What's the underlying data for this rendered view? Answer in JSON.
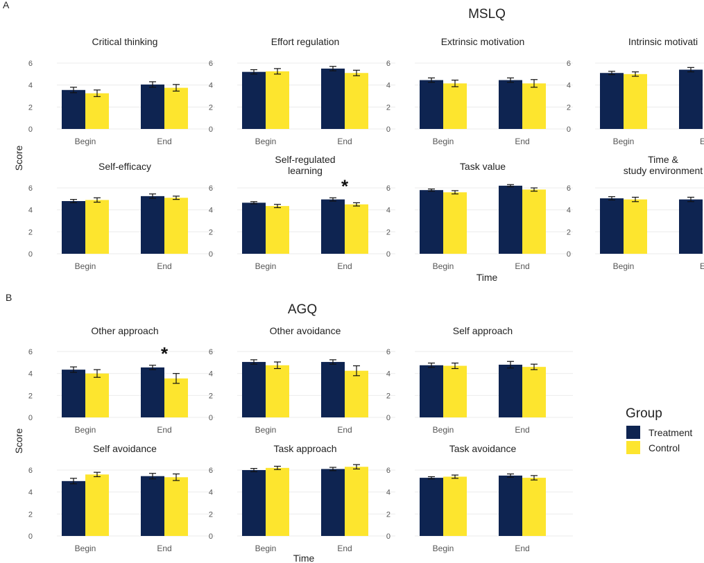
{
  "colors": {
    "treatment": "#0e2451",
    "control": "#fde52e",
    "axis_text": "#555555",
    "text": "#222222",
    "grid": "#ebebeb"
  },
  "section_a": {
    "letter": "A",
    "title": "MSLQ",
    "ylabel": "Score",
    "xlabel": "Time"
  },
  "section_b": {
    "letter": "B",
    "title": "AGQ",
    "ylabel": "Score",
    "xlabel": "Time"
  },
  "legend": {
    "title": "Group",
    "items": [
      "Treatment",
      "Control"
    ]
  },
  "significance_marker": "*",
  "chart_data": [
    {
      "type": "bar",
      "section": "MSLQ",
      "title": "Critical thinking",
      "categories": [
        "Begin",
        "End"
      ],
      "ylim": [
        0,
        6
      ],
      "yticks": [
        0,
        2,
        4,
        6
      ],
      "xlabel": "",
      "ylabel": "",
      "series": [
        {
          "name": "Treatment",
          "values": [
            3.55,
            4.05
          ],
          "errors": [
            0.25,
            0.25
          ]
        },
        {
          "name": "Control",
          "values": [
            3.25,
            3.75
          ],
          "errors": [
            0.3,
            0.3
          ]
        }
      ]
    },
    {
      "type": "bar",
      "section": "MSLQ",
      "title": "Effort regulation",
      "categories": [
        "Begin",
        "End"
      ],
      "ylim": [
        0,
        6
      ],
      "yticks": [
        0,
        2,
        4,
        6
      ],
      "xlabel": "",
      "ylabel": "",
      "series": [
        {
          "name": "Treatment",
          "values": [
            5.2,
            5.5
          ],
          "errors": [
            0.2,
            0.2
          ]
        },
        {
          "name": "Control",
          "values": [
            5.25,
            5.1
          ],
          "errors": [
            0.25,
            0.25
          ]
        }
      ]
    },
    {
      "type": "bar",
      "section": "MSLQ",
      "title": "Extrinsic motivation",
      "categories": [
        "Begin",
        "End"
      ],
      "ylim": [
        0,
        6
      ],
      "yticks": [
        0,
        2,
        4,
        6
      ],
      "xlabel": "",
      "ylabel": "",
      "series": [
        {
          "name": "Treatment",
          "values": [
            4.45,
            4.45
          ],
          "errors": [
            0.2,
            0.2
          ]
        },
        {
          "name": "Control",
          "values": [
            4.15,
            4.15
          ],
          "errors": [
            0.3,
            0.35
          ]
        }
      ]
    },
    {
      "type": "bar",
      "section": "MSLQ",
      "title": "Intrinsic motivati",
      "categories": [
        "Begin",
        "E"
      ],
      "ylim": [
        0,
        6
      ],
      "yticks": [
        0,
        2,
        4,
        6
      ],
      "xlabel": "",
      "ylabel": "",
      "series": [
        {
          "name": "Treatment",
          "values": [
            5.1,
            5.4
          ],
          "errors": [
            0.15,
            0.2
          ]
        },
        {
          "name": "Control",
          "values": [
            5.0,
            null
          ],
          "errors": [
            0.2,
            null
          ]
        }
      ]
    },
    {
      "type": "bar",
      "section": "MSLQ",
      "title": "Self-efficacy",
      "categories": [
        "Begin",
        "End"
      ],
      "ylim": [
        0,
        6
      ],
      "yticks": [
        0,
        2,
        4,
        6
      ],
      "xlabel": "",
      "ylabel": "",
      "series": [
        {
          "name": "Treatment",
          "values": [
            4.8,
            5.25
          ],
          "errors": [
            0.15,
            0.2
          ]
        },
        {
          "name": "Control",
          "values": [
            4.9,
            5.1
          ],
          "errors": [
            0.2,
            0.15
          ]
        }
      ]
    },
    {
      "type": "bar",
      "section": "MSLQ",
      "title": "Self-regulated learning",
      "categories": [
        "Begin",
        "End"
      ],
      "ylim": [
        0,
        6
      ],
      "yticks": [
        0,
        2,
        4,
        6
      ],
      "xlabel": "",
      "ylabel": "",
      "significant": "End",
      "series": [
        {
          "name": "Treatment",
          "values": [
            4.65,
            4.95
          ],
          "errors": [
            0.1,
            0.15
          ]
        },
        {
          "name": "Control",
          "values": [
            4.35,
            4.5
          ],
          "errors": [
            0.15,
            0.15
          ]
        }
      ]
    },
    {
      "type": "bar",
      "section": "MSLQ",
      "title": "Task value",
      "categories": [
        "Begin",
        "End"
      ],
      "ylim": [
        0,
        6
      ],
      "yticks": [
        0,
        2,
        4,
        6
      ],
      "xlabel": "",
      "ylabel": "",
      "series": [
        {
          "name": "Treatment",
          "values": [
            5.8,
            6.2
          ],
          "errors": [
            0.1,
            0.1
          ]
        },
        {
          "name": "Control",
          "values": [
            5.6,
            5.85
          ],
          "errors": [
            0.15,
            0.15
          ]
        }
      ]
    },
    {
      "type": "bar",
      "section": "MSLQ",
      "title": "Time & study environment",
      "categories": [
        "Begin",
        "E"
      ],
      "ylim": [
        0,
        6
      ],
      "yticks": [
        0,
        2,
        4,
        6
      ],
      "xlabel": "",
      "ylabel": "",
      "series": [
        {
          "name": "Treatment",
          "values": [
            5.05,
            4.95
          ],
          "errors": [
            0.15,
            0.2
          ]
        },
        {
          "name": "Control",
          "values": [
            4.95,
            null
          ],
          "errors": [
            0.2,
            null
          ]
        }
      ]
    },
    {
      "type": "bar",
      "section": "AGQ",
      "title": "Other approach",
      "categories": [
        "Begin",
        "End"
      ],
      "ylim": [
        0,
        6
      ],
      "yticks": [
        0,
        2,
        4,
        6
      ],
      "xlabel": "",
      "ylabel": "",
      "significant": "End",
      "series": [
        {
          "name": "Treatment",
          "values": [
            4.35,
            4.55
          ],
          "errors": [
            0.25,
            0.2
          ]
        },
        {
          "name": "Control",
          "values": [
            4.0,
            3.55
          ],
          "errors": [
            0.35,
            0.45
          ]
        }
      ]
    },
    {
      "type": "bar",
      "section": "AGQ",
      "title": "Other avoidance",
      "categories": [
        "Begin",
        "End"
      ],
      "ylim": [
        0,
        6
      ],
      "yticks": [
        0,
        2,
        4,
        6
      ],
      "xlabel": "",
      "ylabel": "",
      "series": [
        {
          "name": "Treatment",
          "values": [
            5.05,
            5.05
          ],
          "errors": [
            0.2,
            0.2
          ]
        },
        {
          "name": "Control",
          "values": [
            4.75,
            4.25
          ],
          "errors": [
            0.3,
            0.45
          ]
        }
      ]
    },
    {
      "type": "bar",
      "section": "AGQ",
      "title": "Self approach",
      "categories": [
        "Begin",
        "End"
      ],
      "ylim": [
        0,
        6
      ],
      "yticks": [
        0,
        2,
        4,
        6
      ],
      "xlabel": "",
      "ylabel": "",
      "series": [
        {
          "name": "Treatment",
          "values": [
            4.75,
            4.8
          ],
          "errors": [
            0.2,
            0.3
          ]
        },
        {
          "name": "Control",
          "values": [
            4.7,
            4.6
          ],
          "errors": [
            0.25,
            0.25
          ]
        }
      ]
    },
    {
      "type": "bar",
      "section": "AGQ",
      "title": "Self avoidance",
      "categories": [
        "Begin",
        "End"
      ],
      "ylim": [
        0,
        6
      ],
      "yticks": [
        0,
        2,
        4,
        6
      ],
      "xlabel": "",
      "ylabel": "",
      "series": [
        {
          "name": "Treatment",
          "values": [
            5.0,
            5.45
          ],
          "errors": [
            0.25,
            0.25
          ]
        },
        {
          "name": "Control",
          "values": [
            5.6,
            5.35
          ],
          "errors": [
            0.2,
            0.3
          ]
        }
      ]
    },
    {
      "type": "bar",
      "section": "AGQ",
      "title": "Task approach",
      "categories": [
        "Begin",
        "End"
      ],
      "ylim": [
        0,
        6
      ],
      "yticks": [
        0,
        2,
        4,
        6
      ],
      "xlabel": "",
      "ylabel": "",
      "series": [
        {
          "name": "Treatment",
          "values": [
            6.0,
            6.1
          ],
          "errors": [
            0.15,
            0.15
          ]
        },
        {
          "name": "Control",
          "values": [
            6.2,
            6.3
          ],
          "errors": [
            0.15,
            0.2
          ]
        }
      ]
    },
    {
      "type": "bar",
      "section": "AGQ",
      "title": "Task avoidance",
      "categories": [
        "Begin",
        "End"
      ],
      "ylim": [
        0,
        6
      ],
      "yticks": [
        0,
        2,
        4,
        6
      ],
      "xlabel": "",
      "ylabel": "",
      "series": [
        {
          "name": "Treatment",
          "values": [
            5.3,
            5.5
          ],
          "errors": [
            0.1,
            0.15
          ]
        },
        {
          "name": "Control",
          "values": [
            5.4,
            5.3
          ],
          "errors": [
            0.15,
            0.2
          ]
        }
      ]
    }
  ]
}
